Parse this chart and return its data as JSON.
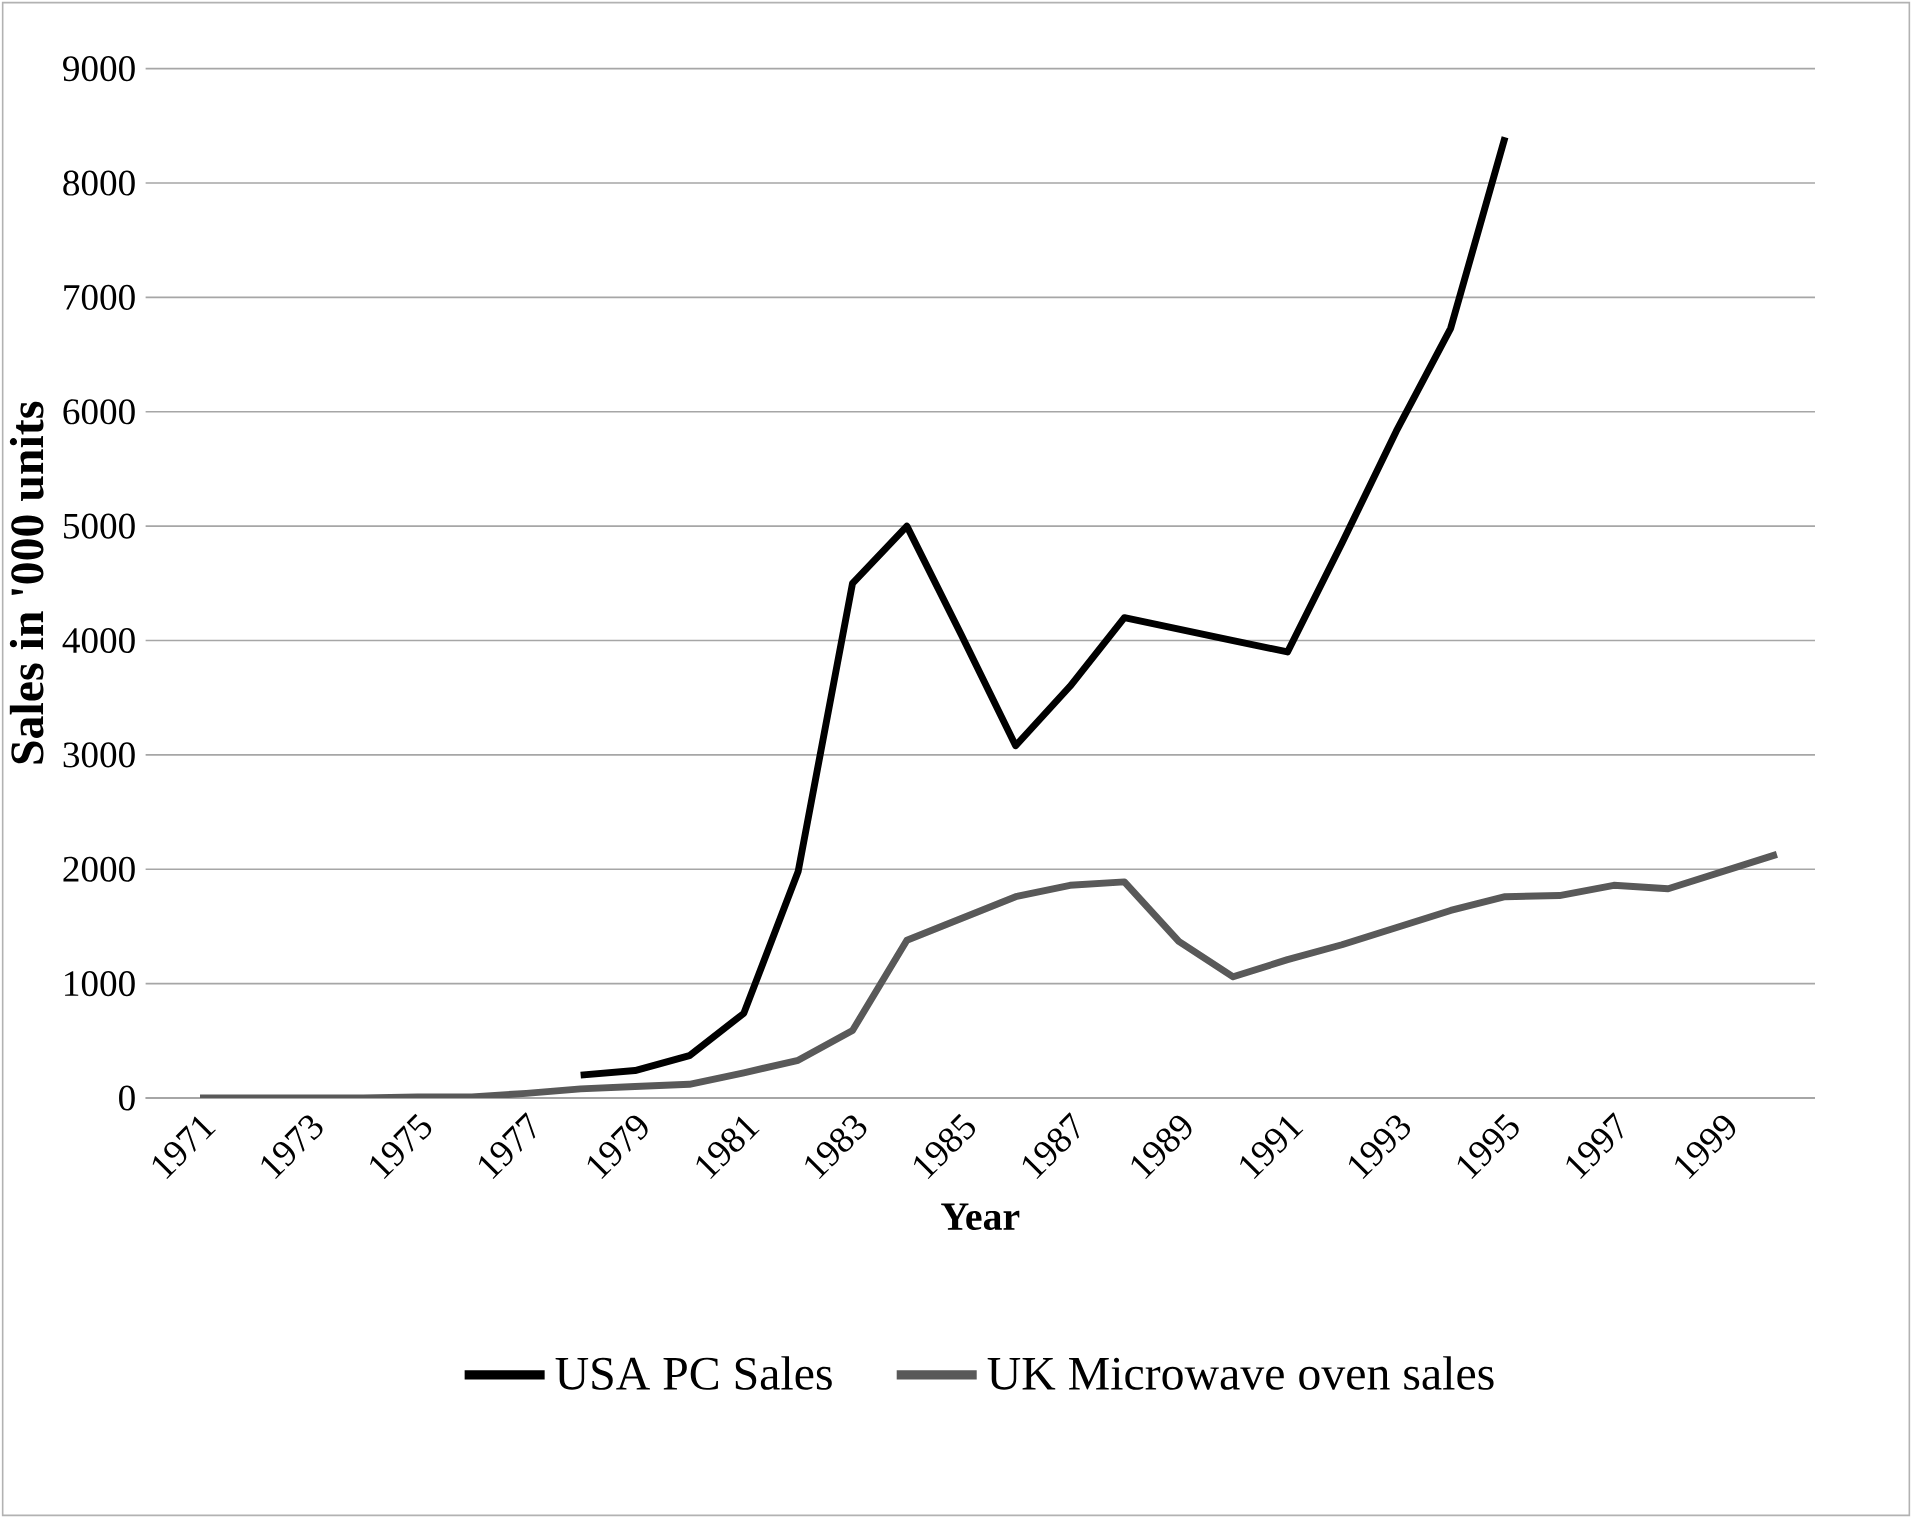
{
  "chart_data": {
    "type": "line",
    "xlabel": "Year",
    "ylabel": "Sales in '000 units",
    "categories": [
      "1971",
      null,
      "1973",
      null,
      "1975",
      null,
      "1977",
      null,
      "1979",
      null,
      "1981",
      null,
      "1983",
      null,
      "1985",
      null,
      "1987",
      null,
      "1989",
      null,
      "1991",
      null,
      "1993",
      null,
      "1995",
      null,
      "1997",
      null,
      "1999",
      null
    ],
    "series": [
      {
        "name": "USA PC Sales",
        "color": "#000000",
        "values": [
          null,
          null,
          null,
          null,
          null,
          null,
          null,
          200,
          240,
          370,
          740,
          1980,
          4500,
          5000,
          4050,
          3080,
          3600,
          4200,
          4100,
          4000,
          3900,
          4850,
          5830,
          6730,
          8400,
          null,
          null,
          null,
          null,
          null
        ]
      },
      {
        "name": "UK Microwave oven sales",
        "color": "#595959",
        "values": [
          0,
          0,
          0,
          0,
          10,
          10,
          40,
          80,
          100,
          120,
          220,
          330,
          590,
          1380,
          1570,
          1760,
          1860,
          1890,
          1370,
          1060,
          1210,
          1340,
          1490,
          1640,
          1760,
          1770,
          1860,
          1830,
          1980,
          2130
        ]
      }
    ],
    "ylim": [
      0,
      9000
    ],
    "yticks": [
      0,
      1000,
      2000,
      3000,
      4000,
      5000,
      6000,
      7000,
      8000,
      9000
    ],
    "grid": "y",
    "legend": "bottom",
    "line_style": "solid"
  }
}
